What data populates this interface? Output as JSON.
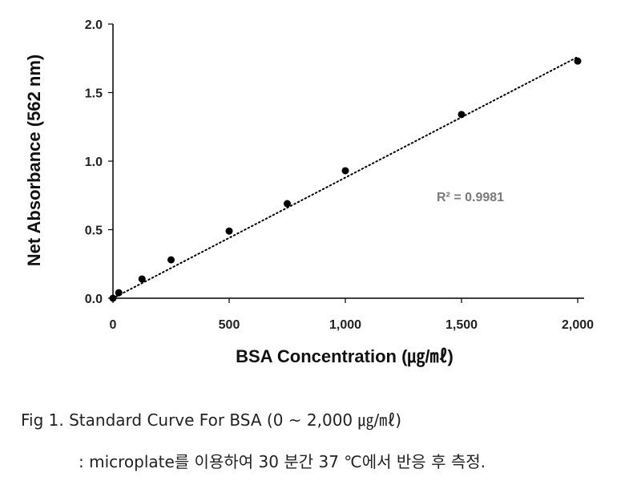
{
  "chart_data": {
    "type": "scatter",
    "xlabel": "BSA Concentration (㎍/㎖)",
    "ylabel": "Net Absorbance (562 nm)",
    "xlim": [
      0,
      2000
    ],
    "ylim": [
      0,
      2.0
    ],
    "x_ticks": [
      "0",
      "500",
      "1,000",
      "1,500",
      "2,000"
    ],
    "y_ticks": [
      "0.0",
      "0.5",
      "1.0",
      "1.5",
      "2.0"
    ],
    "points": [
      {
        "x": 0,
        "y": 0.0
      },
      {
        "x": 25,
        "y": 0.04
      },
      {
        "x": 125,
        "y": 0.14
      },
      {
        "x": 250,
        "y": 0.28
      },
      {
        "x": 500,
        "y": 0.49
      },
      {
        "x": 750,
        "y": 0.69
      },
      {
        "x": 1000,
        "y": 0.93
      },
      {
        "x": 1500,
        "y": 1.34
      },
      {
        "x": 2000,
        "y": 1.73
      }
    ],
    "trendline": {
      "type": "linear",
      "style": "dotted",
      "from": {
        "x": 0,
        "y": 0.0
      },
      "to": {
        "x": 2000,
        "y": 1.76
      }
    },
    "annotation": "R² = 0.9981",
    "grid": false,
    "legend": "none"
  },
  "caption": {
    "line1": "Fig 1. Standard Curve For BSA (0 ~ 2,000 ㎍/㎖)",
    "line2": ": microplate를 이용하여 30 분간 37 ℃에서 반응 후 측정."
  }
}
